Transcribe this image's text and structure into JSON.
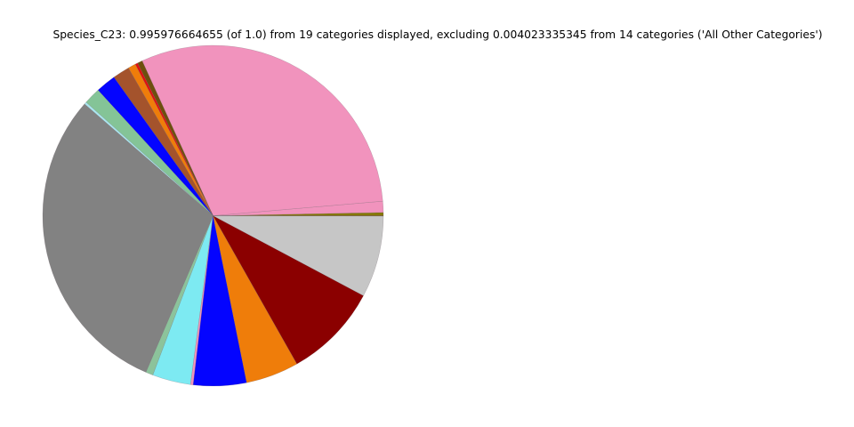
{
  "chart_data": {
    "type": "pie",
    "title": "Species_C23: 0.995976664655 (of 1.0) from 19 categories displayed, excluding 0.004023335345 from 14 categories ('All Other Categories')",
    "series_name": "Species_C23",
    "displayed_total_fraction": "0.995976664655",
    "displayed_of": "1.0",
    "categories_displayed": 19,
    "excluded_fraction": "0.004023335345",
    "categories_excluded": 14,
    "excluded_label": "All Other Categories",
    "legend": "none",
    "start_angle_deg": 0,
    "direction": "counterclockwise",
    "center": {
      "x": 239.5,
      "y": 242.5
    },
    "radius": 191.5,
    "edge_color": "rgba(110,95,105,0.45)",
    "edge_width": 0.45,
    "slices": [
      {
        "id": "slice-01",
        "color": "#857807",
        "start_deg": 0.0,
        "end_deg": 1.1,
        "fraction_est": 0.003
      },
      {
        "id": "slice-02",
        "color": "#F193BD",
        "start_deg": 1.1,
        "end_deg": 4.9,
        "fraction_est": 0.0105
      },
      {
        "id": "slice-03",
        "color": "#F193BD",
        "start_deg": 4.9,
        "end_deg": 114.6,
        "fraction_est": 0.3035
      },
      {
        "id": "slice-04",
        "color": "#6E4F0E",
        "start_deg": 114.6,
        "end_deg": 116.3,
        "fraction_est": 0.0047
      },
      {
        "id": "slice-05",
        "color": "#E01010",
        "start_deg": 116.3,
        "end_deg": 117.2,
        "fraction_est": 0.0025
      },
      {
        "id": "slice-06",
        "color": "#EF7D0A",
        "start_deg": 117.2,
        "end_deg": 119.8,
        "fraction_est": 0.0072
      },
      {
        "id": "slice-07",
        "color": "#A4532C",
        "start_deg": 119.8,
        "end_deg": 125.6,
        "fraction_est": 0.016
      },
      {
        "id": "slice-08",
        "color": "#0404FF",
        "start_deg": 125.6,
        "end_deg": 132.5,
        "fraction_est": 0.0191
      },
      {
        "id": "slice-09",
        "color": "#84C497",
        "start_deg": 132.5,
        "end_deg": 138.2,
        "fraction_est": 0.0158
      },
      {
        "id": "slice-10",
        "color": "#A9E6EE",
        "start_deg": 138.2,
        "end_deg": 139.0,
        "fraction_est": 0.0022
      },
      {
        "id": "slice-11",
        "color": "#828282",
        "start_deg": 139.0,
        "end_deg": 246.8,
        "fraction_est": 0.2982
      },
      {
        "id": "slice-12",
        "color": "#8CC39B",
        "start_deg": 246.8,
        "end_deg": 249.3,
        "fraction_est": 0.0069
      },
      {
        "id": "slice-13",
        "color": "#7DEAF2",
        "start_deg": 249.3,
        "end_deg": 262.4,
        "fraction_est": 0.0362
      },
      {
        "id": "slice-14",
        "color": "#F193BD",
        "start_deg": 262.4,
        "end_deg": 263.3,
        "fraction_est": 0.0025
      },
      {
        "id": "slice-15",
        "color": "#0404FF",
        "start_deg": 263.3,
        "end_deg": 281.4,
        "fraction_est": 0.0501
      },
      {
        "id": "slice-16",
        "color": "#EF7D0A",
        "start_deg": 281.4,
        "end_deg": 299.5,
        "fraction_est": 0.0501
      },
      {
        "id": "slice-17",
        "color": "#8B0000",
        "start_deg": 299.5,
        "end_deg": 332.0,
        "fraction_est": 0.0899
      },
      {
        "id": "slice-18",
        "color": "#C6C6C6",
        "start_deg": 332.0,
        "end_deg": 359.9,
        "fraction_est": 0.0772
      },
      {
        "id": "slice-19",
        "color": "#8B4513",
        "start_deg": 359.9,
        "end_deg": 360.0,
        "fraction_est": 0.0003
      }
    ]
  }
}
